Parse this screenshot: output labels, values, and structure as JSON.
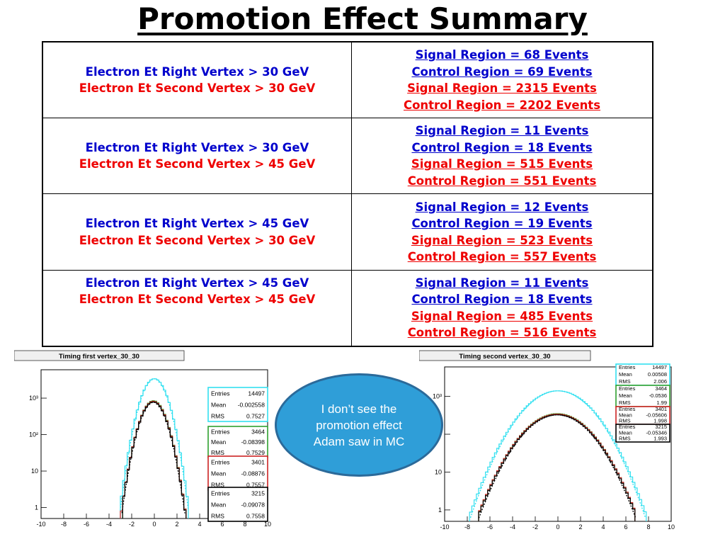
{
  "slide": {
    "title": "Promotion Effect Summary"
  },
  "table": {
    "rows": [
      {
        "cut_right": "Electron Et Right Vertex > 30 GeV",
        "cut_second": "Electron Et Second Vertex > 30 GeV",
        "signal_blue": "Signal Region = 68 Events",
        "control_blue": "Control Region = 69 Events",
        "signal_red": "Signal Region = 2315 Events",
        "control_red": "Control Region = 2202 Events"
      },
      {
        "cut_right": "Electron Et Right Vertex > 30 GeV",
        "cut_second": "Electron Et Second Vertex > 45 GeV",
        "signal_blue": "Signal Region = 11 Events",
        "control_blue": "Control Region = 18 Events",
        "signal_red": "Signal Region = 515 Events",
        "control_red": "Control Region = 551 Events"
      },
      {
        "cut_right": "Electron Et Right Vertex > 45 GeV",
        "cut_second": "Electron Et Second Vertex > 30 GeV",
        "signal_blue": "Signal Region = 12 Events",
        "control_blue": "Control Region = 19 Events",
        "signal_red": "Signal Region = 523 Events",
        "control_red": "Control Region = 557 Events"
      },
      {
        "cut_right": "Electron Et Right Vertex > 45 GeV",
        "cut_second": "Electron Et Second Vertex > 45 GeV",
        "signal_blue": "Signal Region = 11 Events",
        "control_blue": "Control Region = 18 Events",
        "signal_red": "Signal Region = 485 Events",
        "control_red": "Control Region = 516 Events"
      }
    ]
  },
  "colors": {
    "blue": "#0000cc",
    "red": "#ee0000",
    "cyan": "#33e0f0",
    "green": "#2ea02e",
    "redbox": "#cc2222",
    "black": "#000000",
    "bubble": "#2f9ed8"
  },
  "callout": {
    "text": "I don’t see the promotion effect Adam saw in MC"
  },
  "chart_data": [
    {
      "type": "histogram",
      "title": "Timing first vertex_30_30",
      "x_range": [
        -10,
        10
      ],
      "x_ticks": [
        -10,
        -8,
        -6,
        -4,
        -2,
        0,
        2,
        4,
        6,
        8,
        10
      ],
      "y_scale": "log",
      "y_ticks": [
        {
          "v": 1,
          "label": "1"
        },
        {
          "v": 10,
          "label": "10"
        },
        {
          "v": 100,
          "label": "10²"
        },
        {
          "v": 1000,
          "label": "10³"
        }
      ],
      "series": [
        {
          "name": "cyan",
          "stats": [
            [
              "Entries",
              "14497"
            ],
            [
              "Mean",
              "-0.002558"
            ],
            [
              "RMS",
              "0.7527"
            ]
          ],
          "mean": -0.002558,
          "rms": 0.7527,
          "peak": 3400
        },
        {
          "name": "green",
          "stats": [
            [
              "Entries",
              "3464"
            ],
            [
              "Mean",
              "-0.08398"
            ],
            [
              "RMS",
              "0.7529"
            ]
          ],
          "mean": -0.08398,
          "rms": 0.7529,
          "peak": 850
        },
        {
          "name": "red",
          "stats": [
            [
              "Entries",
              "3401"
            ],
            [
              "Mean",
              "-0.08876"
            ],
            [
              "RMS",
              "0.7557"
            ]
          ],
          "mean": -0.08876,
          "rms": 0.7557,
          "peak": 820
        },
        {
          "name": "black",
          "stats": [
            [
              "Entries",
              "3215"
            ],
            [
              "Mean",
              "-0.09078"
            ],
            [
              "RMS",
              "0.7558"
            ]
          ],
          "mean": -0.09078,
          "rms": 0.7558,
          "peak": 780
        }
      ]
    },
    {
      "type": "histogram",
      "title": "Timing second vertex_30_30",
      "x_range": [
        -10,
        10
      ],
      "x_ticks": [
        -10,
        -8,
        -6,
        -4,
        -2,
        0,
        2,
        4,
        6,
        8,
        10
      ],
      "y_scale": "log",
      "y_ticks": [
        {
          "v": 1,
          "label": "1"
        },
        {
          "v": 10,
          "label": "10"
        },
        {
          "v": 100,
          "label": "10²"
        },
        {
          "v": 1000,
          "label": "10³"
        }
      ],
      "series": [
        {
          "name": "cyan",
          "stats": [
            [
              "Entries",
              "14497"
            ],
            [
              "Mean",
              "0.00508"
            ],
            [
              "RMS",
              "2.006"
            ]
          ],
          "mean": 0.00508,
          "rms": 2.006,
          "peak": 1400
        },
        {
          "name": "green",
          "stats": [
            [
              "Entries",
              "3464"
            ],
            [
              "Mean",
              "-0.0536"
            ],
            [
              "RMS",
              "1.99"
            ]
          ],
          "mean": -0.0536,
          "rms": 1.99,
          "peak": 350
        },
        {
          "name": "red",
          "stats": [
            [
              "Entries",
              "3401"
            ],
            [
              "Mean",
              "-0.05606"
            ],
            [
              "RMS",
              "1.998"
            ]
          ],
          "mean": -0.05606,
          "rms": 1.998,
          "peak": 340
        },
        {
          "name": "black",
          "stats": [
            [
              "Entries",
              "3215"
            ],
            [
              "Mean",
              "-0.05346"
            ],
            [
              "RMS",
              "1.993"
            ]
          ],
          "mean": -0.05346,
          "rms": 1.993,
          "peak": 325
        }
      ]
    }
  ]
}
